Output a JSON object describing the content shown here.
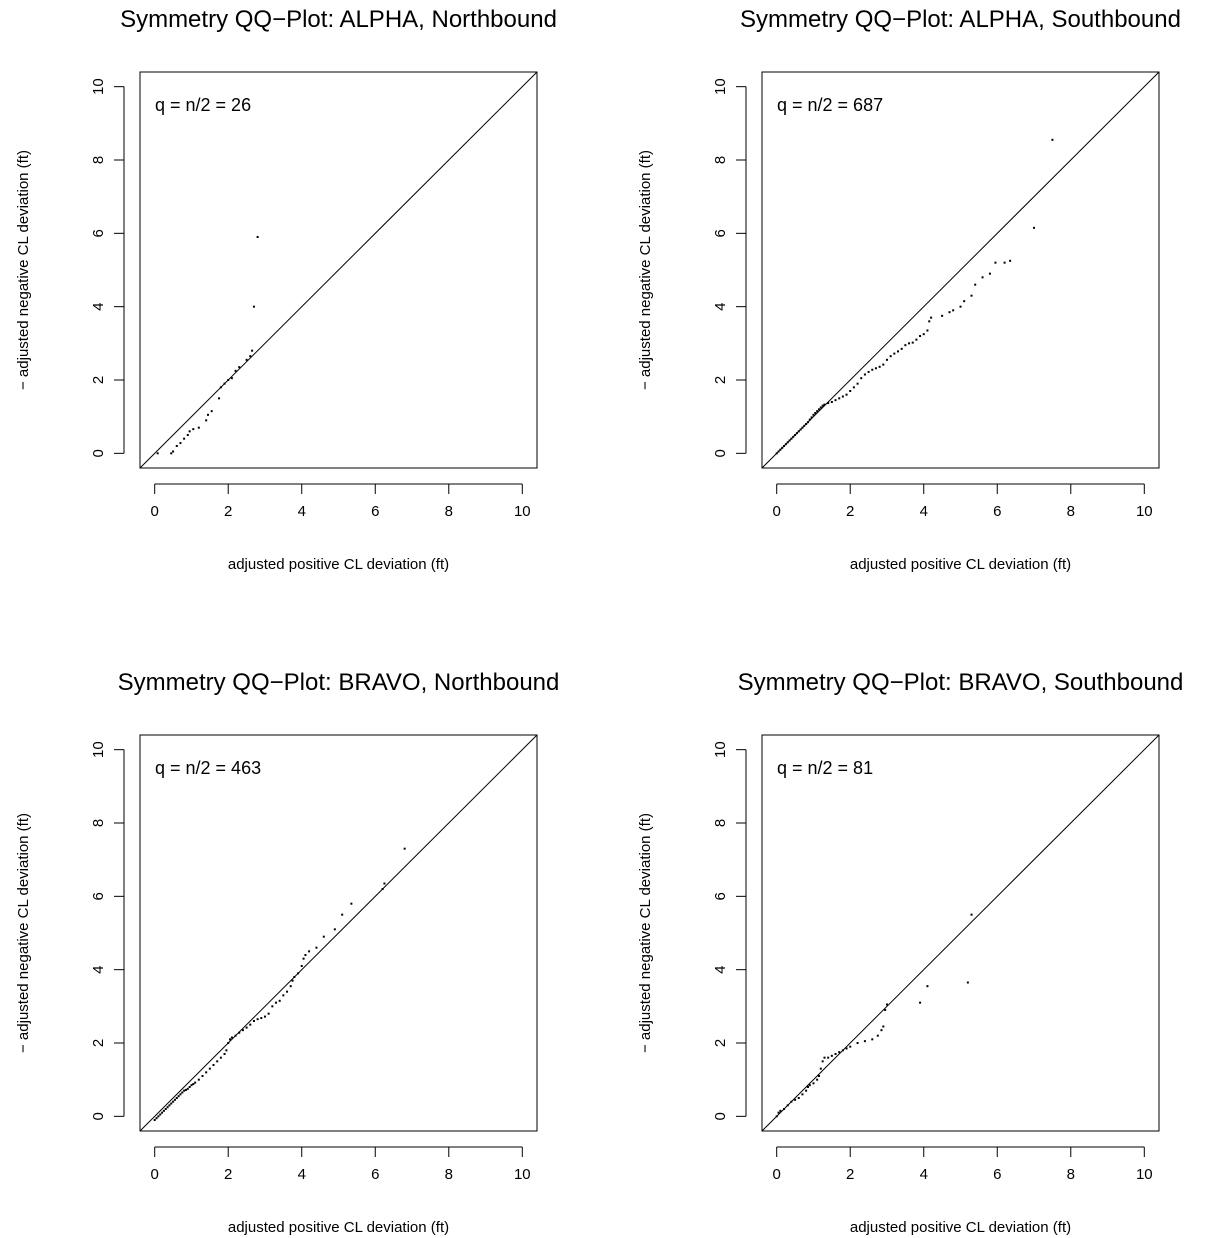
{
  "figure": {
    "colors": {
      "ink": "#000000",
      "background": "#ffffff"
    }
  },
  "chart_data": [
    {
      "type": "scatter",
      "title": "Symmetry QQ−Plot: ALPHA, Northbound",
      "xlabel": "adjusted positive CL deviation (ft)",
      "ylabel": "− adjusted negative CL deviation (ft)",
      "annotation": "q = n/2 = 26",
      "xlim": [
        -0.4,
        10.4
      ],
      "ylim": [
        -0.4,
        10.4
      ],
      "xticks": [
        0,
        2,
        4,
        6,
        8,
        10
      ],
      "yticks": [
        0,
        2,
        4,
        6,
        8,
        10
      ],
      "reference_line": "y = x",
      "points": [
        [
          0.08,
          0.0
        ],
        [
          0.45,
          0.0
        ],
        [
          0.5,
          0.05
        ],
        [
          0.6,
          0.2
        ],
        [
          0.7,
          0.28
        ],
        [
          0.8,
          0.4
        ],
        [
          0.9,
          0.5
        ],
        [
          0.95,
          0.6
        ],
        [
          1.05,
          0.66
        ],
        [
          1.2,
          0.7
        ],
        [
          1.4,
          0.9
        ],
        [
          1.45,
          1.05
        ],
        [
          1.55,
          1.15
        ],
        [
          1.75,
          1.5
        ],
        [
          1.8,
          1.8
        ],
        [
          1.9,
          1.9
        ],
        [
          2.0,
          2.0
        ],
        [
          2.1,
          2.05
        ],
        [
          2.2,
          2.25
        ],
        [
          2.3,
          2.35
        ],
        [
          2.5,
          2.55
        ],
        [
          2.6,
          2.65
        ],
        [
          2.65,
          2.8
        ],
        [
          2.7,
          4.0
        ],
        [
          2.8,
          5.9
        ]
      ]
    },
    {
      "type": "scatter",
      "title": "Symmetry QQ−Plot: ALPHA, Southbound",
      "xlabel": "adjusted positive CL deviation (ft)",
      "ylabel": "− adjusted negative CL deviation (ft)",
      "annotation": "q = n/2 = 687",
      "xlim": [
        -0.4,
        10.4
      ],
      "ylim": [
        -0.4,
        10.4
      ],
      "xticks": [
        0,
        2,
        4,
        6,
        8,
        10
      ],
      "yticks": [
        0,
        2,
        4,
        6,
        8,
        10
      ],
      "reference_line": "y = x",
      "points": [
        [
          0.0,
          0.0
        ],
        [
          0.05,
          0.05
        ],
        [
          0.1,
          0.1
        ],
        [
          0.15,
          0.15
        ],
        [
          0.2,
          0.2
        ],
        [
          0.25,
          0.25
        ],
        [
          0.3,
          0.3
        ],
        [
          0.35,
          0.35
        ],
        [
          0.4,
          0.4
        ],
        [
          0.45,
          0.45
        ],
        [
          0.5,
          0.5
        ],
        [
          0.55,
          0.55
        ],
        [
          0.6,
          0.6
        ],
        [
          0.65,
          0.65
        ],
        [
          0.7,
          0.7
        ],
        [
          0.75,
          0.75
        ],
        [
          0.8,
          0.8
        ],
        [
          0.85,
          0.85
        ],
        [
          0.9,
          0.92
        ],
        [
          0.95,
          0.98
        ],
        [
          1.0,
          1.05
        ],
        [
          1.05,
          1.1
        ],
        [
          1.1,
          1.15
        ],
        [
          1.15,
          1.2
        ],
        [
          1.2,
          1.25
        ],
        [
          1.25,
          1.3
        ],
        [
          1.3,
          1.33
        ],
        [
          1.4,
          1.37
        ],
        [
          1.5,
          1.4
        ],
        [
          1.6,
          1.45
        ],
        [
          1.7,
          1.5
        ],
        [
          1.8,
          1.55
        ],
        [
          1.9,
          1.6
        ],
        [
          2.0,
          1.7
        ],
        [
          2.1,
          1.8
        ],
        [
          2.2,
          1.9
        ],
        [
          2.3,
          2.05
        ],
        [
          2.4,
          2.15
        ],
        [
          2.5,
          2.22
        ],
        [
          2.6,
          2.28
        ],
        [
          2.7,
          2.32
        ],
        [
          2.8,
          2.36
        ],
        [
          2.9,
          2.42
        ],
        [
          3.0,
          2.55
        ],
        [
          3.1,
          2.65
        ],
        [
          3.2,
          2.72
        ],
        [
          3.3,
          2.78
        ],
        [
          3.4,
          2.85
        ],
        [
          3.5,
          2.95
        ],
        [
          3.6,
          3.0
        ],
        [
          3.7,
          3.02
        ],
        [
          3.8,
          3.1
        ],
        [
          3.9,
          3.2
        ],
        [
          4.0,
          3.25
        ],
        [
          4.1,
          3.35
        ],
        [
          4.15,
          3.6
        ],
        [
          4.2,
          3.7
        ],
        [
          4.5,
          3.75
        ],
        [
          4.7,
          3.85
        ],
        [
          4.8,
          3.9
        ],
        [
          5.0,
          4.0
        ],
        [
          5.1,
          4.15
        ],
        [
          5.3,
          4.3
        ],
        [
          5.4,
          4.6
        ],
        [
          5.6,
          4.8
        ],
        [
          5.8,
          4.9
        ],
        [
          5.95,
          5.2
        ],
        [
          6.2,
          5.2
        ],
        [
          6.35,
          5.25
        ],
        [
          7.0,
          6.15
        ],
        [
          7.5,
          8.55
        ]
      ]
    },
    {
      "type": "scatter",
      "title": "Symmetry QQ−Plot: BRAVO, Northbound",
      "xlabel": "adjusted positive CL deviation (ft)",
      "ylabel": "− adjusted negative CL deviation (ft)",
      "annotation": "q = n/2 = 463",
      "xlim": [
        -0.4,
        10.4
      ],
      "ylim": [
        -0.4,
        10.4
      ],
      "xticks": [
        0,
        2,
        4,
        6,
        8,
        10
      ],
      "yticks": [
        0,
        2,
        4,
        6,
        8,
        10
      ],
      "reference_line": "y = x",
      "points": [
        [
          0.0,
          -0.1
        ],
        [
          0.05,
          -0.05
        ],
        [
          0.1,
          0.0
        ],
        [
          0.15,
          0.05
        ],
        [
          0.2,
          0.1
        ],
        [
          0.25,
          0.15
        ],
        [
          0.3,
          0.2
        ],
        [
          0.35,
          0.25
        ],
        [
          0.4,
          0.3
        ],
        [
          0.45,
          0.35
        ],
        [
          0.5,
          0.4
        ],
        [
          0.55,
          0.45
        ],
        [
          0.6,
          0.5
        ],
        [
          0.65,
          0.55
        ],
        [
          0.7,
          0.6
        ],
        [
          0.75,
          0.65
        ],
        [
          0.8,
          0.7
        ],
        [
          0.85,
          0.72
        ],
        [
          0.9,
          0.75
        ],
        [
          0.95,
          0.8
        ],
        [
          1.0,
          0.85
        ],
        [
          1.05,
          0.88
        ],
        [
          1.1,
          0.92
        ],
        [
          1.2,
          1.0
        ],
        [
          1.3,
          1.1
        ],
        [
          1.4,
          1.2
        ],
        [
          1.5,
          1.3
        ],
        [
          1.6,
          1.4
        ],
        [
          1.7,
          1.5
        ],
        [
          1.8,
          1.6
        ],
        [
          1.9,
          1.7
        ],
        [
          1.95,
          1.8
        ],
        [
          2.0,
          2.0
        ],
        [
          2.05,
          2.1
        ],
        [
          2.1,
          2.15
        ],
        [
          2.2,
          2.2
        ],
        [
          2.3,
          2.28
        ],
        [
          2.4,
          2.35
        ],
        [
          2.5,
          2.42
        ],
        [
          2.6,
          2.5
        ],
        [
          2.7,
          2.6
        ],
        [
          2.8,
          2.65
        ],
        [
          2.9,
          2.68
        ],
        [
          3.0,
          2.72
        ],
        [
          3.1,
          2.8
        ],
        [
          3.2,
          3.0
        ],
        [
          3.3,
          3.1
        ],
        [
          3.4,
          3.15
        ],
        [
          3.5,
          3.3
        ],
        [
          3.6,
          3.4
        ],
        [
          3.7,
          3.55
        ],
        [
          3.75,
          3.7
        ],
        [
          3.8,
          3.8
        ],
        [
          3.9,
          3.9
        ],
        [
          4.0,
          4.1
        ],
        [
          4.05,
          4.3
        ],
        [
          4.1,
          4.4
        ],
        [
          4.2,
          4.5
        ],
        [
          4.4,
          4.6
        ],
        [
          4.6,
          4.9
        ],
        [
          4.9,
          5.1
        ],
        [
          5.1,
          5.5
        ],
        [
          5.35,
          5.8
        ],
        [
          6.2,
          6.2
        ],
        [
          6.25,
          6.35
        ],
        [
          6.8,
          7.3
        ]
      ]
    },
    {
      "type": "scatter",
      "title": "Symmetry QQ−Plot: BRAVO, Southbound",
      "xlabel": "adjusted positive CL deviation (ft)",
      "ylabel": "− adjusted negative CL deviation (ft)",
      "annotation": "q = n/2 = 81",
      "xlim": [
        -0.4,
        10.4
      ],
      "ylim": [
        -0.4,
        10.4
      ],
      "xticks": [
        0,
        2,
        4,
        6,
        8,
        10
      ],
      "yticks": [
        0,
        2,
        4,
        6,
        8,
        10
      ],
      "reference_line": "y = x",
      "points": [
        [
          0.0,
          0.0
        ],
        [
          0.05,
          0.1
        ],
        [
          0.1,
          0.15
        ],
        [
          0.2,
          0.2
        ],
        [
          0.3,
          0.3
        ],
        [
          0.4,
          0.4
        ],
        [
          0.5,
          0.45
        ],
        [
          0.6,
          0.5
        ],
        [
          0.7,
          0.6
        ],
        [
          0.8,
          0.7
        ],
        [
          0.85,
          0.8
        ],
        [
          0.9,
          0.85
        ],
        [
          1.0,
          0.9
        ],
        [
          1.1,
          1.0
        ],
        [
          1.15,
          1.1
        ],
        [
          1.2,
          1.3
        ],
        [
          1.25,
          1.5
        ],
        [
          1.3,
          1.6
        ],
        [
          1.4,
          1.6
        ],
        [
          1.5,
          1.65
        ],
        [
          1.6,
          1.7
        ],
        [
          1.7,
          1.75
        ],
        [
          1.8,
          1.8
        ],
        [
          1.9,
          1.85
        ],
        [
          2.0,
          1.9
        ],
        [
          2.2,
          2.0
        ],
        [
          2.4,
          2.05
        ],
        [
          2.6,
          2.1
        ],
        [
          2.75,
          2.2
        ],
        [
          2.85,
          2.35
        ],
        [
          2.9,
          2.45
        ],
        [
          2.95,
          2.9
        ],
        [
          3.0,
          3.05
        ],
        [
          3.9,
          3.1
        ],
        [
          4.1,
          3.55
        ],
        [
          5.2,
          3.65
        ],
        [
          5.3,
          5.5
        ]
      ]
    }
  ]
}
